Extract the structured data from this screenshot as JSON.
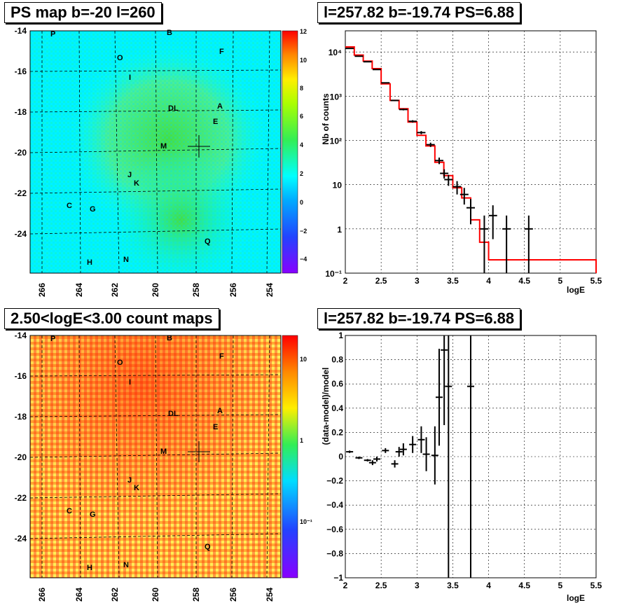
{
  "panels": {
    "tl_title": "PS map b=-20 l=260",
    "tr_title": "l=257.82 b=-19.74 PS=6.88",
    "bl_title": "2.50<logE<3.00 count maps",
    "br_title": "l=257.82 b=-19.74 PS=6.88"
  },
  "colors": {
    "map_bg_top": "#00ffff",
    "map_green": "#33dd55",
    "count_red": "#ff4422",
    "count_yellow": "#ffee55",
    "model_line": "#ff0000",
    "data_points": "#000000"
  },
  "chart_data": [
    {
      "type": "heatmap",
      "title": "PS map b=-20 l=260",
      "x_ticks": [
        "266",
        "264",
        "262",
        "260",
        "258",
        "256",
        "254"
      ],
      "y_ticks": [
        "-14",
        "-16",
        "-18",
        "-20",
        "-22",
        "-24"
      ],
      "colorbar_ticks": [
        "12",
        "10",
        "8",
        "6",
        "4",
        "2",
        "0",
        "−2",
        "−4"
      ],
      "zlim": [
        -5,
        12
      ],
      "sources": [
        "P",
        "B",
        "F",
        "O",
        "I",
        "DL",
        "A",
        "E",
        "M",
        "J",
        "K",
        "C",
        "G",
        "Q",
        "H",
        "N"
      ]
    },
    {
      "type": "line",
      "title": "l=257.82 b=-19.74 PS=6.88",
      "xlabel": "logE",
      "ylabel": "Nb of counts",
      "yscale": "log",
      "xlim": [
        2,
        5.5
      ],
      "ylim": [
        0.1,
        30000
      ],
      "x_ticks": [
        "2",
        "2.5",
        "3",
        "3.5",
        "4",
        "4.5",
        "5",
        "5.5"
      ],
      "y_ticks": [
        "10^-1",
        "1",
        "10",
        "10^2",
        "10^3",
        "10^4"
      ],
      "model_edges": [
        2.0,
        2.125,
        2.25,
        2.375,
        2.5,
        2.625,
        2.75,
        2.875,
        3.0,
        3.125,
        3.25,
        3.375,
        3.5,
        3.625,
        3.75,
        3.875,
        4.0,
        5.5
      ],
      "model_values": [
        13000,
        8500,
        6200,
        4200,
        1900,
        800,
        520,
        260,
        130,
        75,
        32,
        16,
        8.5,
        5,
        1.6,
        0.5,
        0.2,
        0.1
      ],
      "data_x": [
        2.06,
        2.19,
        2.31,
        2.44,
        2.56,
        2.69,
        2.81,
        2.94,
        3.06,
        3.19,
        3.31,
        3.38,
        3.44,
        3.56,
        3.66,
        3.75,
        3.94,
        4.06,
        4.25,
        4.56
      ],
      "data_y": [
        12000,
        8000,
        6000,
        4000,
        2000,
        800,
        500,
        270,
        150,
        80,
        35,
        18,
        13,
        9,
        6,
        3,
        1,
        2,
        1,
        1
      ]
    },
    {
      "type": "heatmap",
      "title": "2.50<logE<3.00 count maps",
      "x_ticks": [
        "266",
        "264",
        "262",
        "260",
        "258",
        "256",
        "254"
      ],
      "y_ticks": [
        "-14",
        "-16",
        "-18",
        "-20",
        "-22",
        "-24"
      ],
      "colorbar_ticks": [
        "10",
        "1",
        "10^-1"
      ]
    },
    {
      "type": "scatter",
      "title": "l=257.82 b=-19.74 PS=6.88",
      "xlabel": "logE",
      "ylabel": "(data-model)/model",
      "xlim": [
        2,
        5.5
      ],
      "ylim": [
        -1,
        1
      ],
      "x_ticks": [
        "2",
        "2.5",
        "3",
        "3.5",
        "4",
        "4.5",
        "5",
        "5.5"
      ],
      "y_ticks": [
        "−1",
        "−0.8",
        "−0.6",
        "−0.4",
        "−0.2",
        "0",
        "0.2",
        "0.4",
        "0.6",
        "0.8",
        "1"
      ],
      "x": [
        2.06,
        2.19,
        2.31,
        2.38,
        2.44,
        2.56,
        2.69,
        2.75,
        2.81,
        2.94,
        3.06,
        3.13,
        3.25,
        3.31,
        3.38,
        3.44,
        3.75
      ],
      "y": [
        0.04,
        -0.01,
        -0.03,
        -0.05,
        -0.02,
        0.05,
        -0.06,
        0.04,
        0.06,
        0.1,
        0.14,
        0.02,
        0.01,
        0.49,
        0.88,
        0.58,
        0.58
      ],
      "err": [
        0.01,
        0.01,
        0.01,
        0.02,
        0.02,
        0.02,
        0.03,
        0.04,
        0.05,
        0.07,
        0.11,
        0.14,
        0.24,
        0.4,
        0.62,
        1.6,
        1.6
      ]
    }
  ]
}
